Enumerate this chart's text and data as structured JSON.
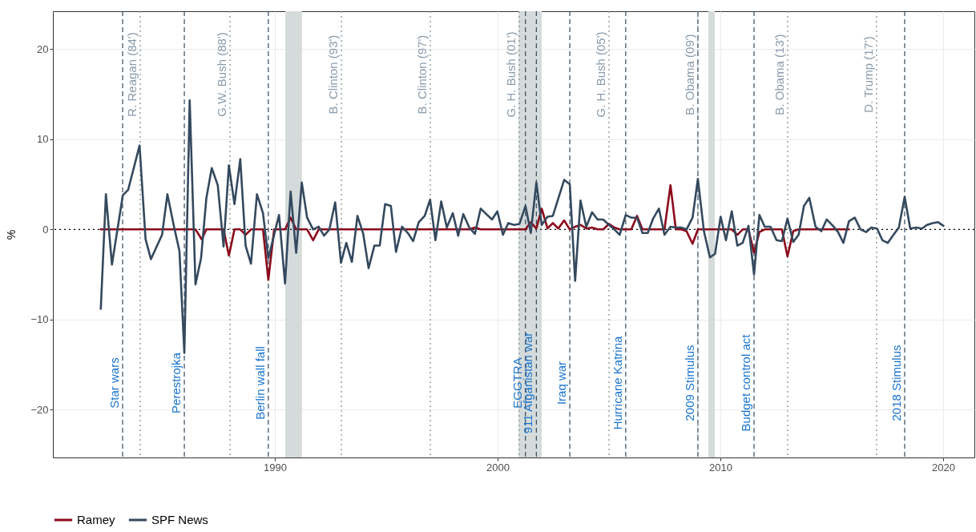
{
  "chart_data": {
    "type": "line",
    "ylabel": "%",
    "xlim": [
      1980.04,
      2021.4
    ],
    "xticks": [
      1990,
      2000,
      2010,
      2020
    ],
    "ylim": [
      -25.3,
      24.2
    ],
    "yticks": [
      -20,
      -10,
      0,
      10,
      20
    ],
    "grid": true,
    "legend": "bottom",
    "line_style": "solid",
    "series": [
      {
        "name": "Ramey",
        "color": "#8b0a1a",
        "x": [
          1982.19,
          1986.44,
          1986.72,
          1986.93,
          1987.7,
          1987.94,
          1988.19,
          1988.45,
          1988.69,
          1988.93,
          1989.47,
          1989.71,
          1989.97,
          1990.46,
          1990.71,
          1990.96,
          1991.45,
          1991.72,
          1991.97,
          1998.73,
          1998.98,
          1999.24,
          2000.98,
          2001.25,
          2001.49,
          2001.74,
          2001.98,
          2002.24,
          2002.48,
          2002.72,
          2002.99,
          2003.24,
          2003.48,
          2003.72,
          2003.98,
          2004.24,
          2004.49,
          2004.74,
          2005.0,
          2005.24,
          2005.48,
          2006.0,
          2006.26,
          2006.5,
          2007.49,
          2007.76,
          2008.0,
          2008.24,
          2008.48,
          2008.75,
          2008.99,
          2010.51,
          2010.76,
          2011.0,
          2011.26,
          2011.51,
          2011.75,
          2011.99,
          2012.76,
          2013.01,
          2013.27,
          2013.51,
          2015.77
        ],
        "values": [
          0,
          0,
          -1.1,
          0,
          0,
          -2.9,
          0,
          0,
          -0.6,
          0,
          0,
          -5.6,
          0,
          0,
          1.3,
          0,
          0,
          -1.2,
          0,
          0,
          0.2,
          0,
          0,
          0,
          0.8,
          0.1,
          2.3,
          0.1,
          0.7,
          0.1,
          1.0,
          0,
          0.3,
          0.5,
          0.1,
          0.2,
          0,
          0,
          0.6,
          0.2,
          0,
          0,
          1.5,
          0,
          0,
          4.9,
          0,
          0,
          -0.2,
          -1.6,
          0,
          0,
          -0.6,
          0,
          0,
          -2.6,
          -0.3,
          0,
          0,
          -3.0,
          -0.2,
          0,
          0
        ]
      },
      {
        "name": "SPF News",
        "color": "#34495e",
        "x": [
          1982.19,
          1982.42,
          1982.69,
          1983.18,
          1983.42,
          1983.93,
          1984.2,
          1984.44,
          1984.94,
          1985.18,
          1985.46,
          1985.72,
          1985.94,
          1986.18,
          1986.44,
          1986.69,
          1986.93,
          1987.17,
          1987.44,
          1987.7,
          1987.94,
          1988.19,
          1988.45,
          1988.69,
          1988.93,
          1989.2,
          1989.47,
          1989.71,
          1990.19,
          1990.46,
          1990.71,
          1990.96,
          1991.21,
          1991.45,
          1991.72,
          1991.97,
          1992.21,
          1992.45,
          1992.71,
          1992.97,
          1993.21,
          1993.46,
          1993.71,
          1993.97,
          1994.21,
          1994.47,
          1994.71,
          1994.95,
          1995.21,
          1995.44,
          1995.71,
          1995.97,
          1996.21,
          1996.46,
          1996.73,
          1996.97,
          1997.21,
          1997.47,
          1997.72,
          1997.99,
          1998.23,
          1998.46,
          1998.73,
          1998.98,
          1999.24,
          1999.49,
          1999.75,
          1999.99,
          2000.24,
          2000.48,
          2000.74,
          2000.98,
          2001.25,
          2001.49,
          2001.74,
          2001.98,
          2002.24,
          2002.48,
          2002.72,
          2002.99,
          2003.24,
          2003.48,
          2003.72,
          2003.98,
          2004.24,
          2004.49,
          2004.74,
          2005.0,
          2005.24,
          2005.48,
          2005.75,
          2006.0,
          2006.26,
          2006.5,
          2006.74,
          2006.98,
          2007.24,
          2007.49,
          2007.76,
          2008.0,
          2008.24,
          2008.48,
          2008.75,
          2008.99,
          2009.26,
          2009.53,
          2009.76,
          2010.01,
          2010.25,
          2010.51,
          2010.76,
          2011.0,
          2011.26,
          2011.51,
          2011.75,
          2011.99,
          2012.25,
          2012.52,
          2012.76,
          2013.01,
          2013.27,
          2013.51,
          2013.75,
          2013.99,
          2014.27,
          2014.53,
          2014.77,
          2015.05,
          2015.28,
          2015.52,
          2015.77,
          2016.03,
          2016.29,
          2016.54,
          2016.77,
          2017.03,
          2017.27,
          2017.51,
          2017.77,
          2018.01,
          2018.27,
          2018.52,
          2018.79,
          2019.05,
          2019.27,
          2019.53,
          2019.77,
          2020.01
        ],
        "values": [
          -8.8,
          3.9,
          -3.9,
          3.8,
          4.4,
          9.3,
          -1.1,
          -3.3,
          -0.6,
          3.9,
          0.5,
          -2.4,
          -13.7,
          14.3,
          -6.1,
          -3.2,
          3.5,
          6.8,
          4.9,
          -1.9,
          7.1,
          2.8,
          7.8,
          -1.8,
          -3.8,
          3.9,
          1.8,
          -3.2,
          1.6,
          -6.0,
          4.2,
          -2.6,
          5.2,
          1.3,
          0.0,
          0.3,
          -0.7,
          0.0,
          3.0,
          -3.7,
          -1.5,
          -3.6,
          1.5,
          -0.5,
          -4.3,
          -1.8,
          -1.8,
          2.8,
          2.6,
          -2.5,
          0.3,
          -0.4,
          -1.3,
          0.8,
          1.5,
          3.3,
          -1.2,
          3.1,
          0.2,
          1.8,
          -0.7,
          1.7,
          0.2,
          -0.5,
          2.3,
          1.7,
          1.1,
          2.0,
          -0.6,
          0.7,
          0.5,
          0.6,
          2.6,
          -0.4,
          5.2,
          0.5,
          1.4,
          1.5,
          3.4,
          5.5,
          5.0,
          -5.7,
          3.2,
          0.3,
          1.9,
          1.1,
          1.1,
          0.5,
          0.0,
          -0.6,
          1.6,
          1.3,
          1.3,
          -0.4,
          -0.4,
          1.2,
          2.3,
          -0.6,
          0.3,
          0.2,
          0.2,
          0.0,
          1.3,
          5.6,
          -0.2,
          -3.1,
          -2.7,
          1.4,
          -1.2,
          2.0,
          -1.8,
          -1.5,
          0.4,
          -5.0,
          1.6,
          0.3,
          0.3,
          -1.2,
          -1.3,
          1.2,
          -1.4,
          -0.6,
          2.6,
          3.5,
          0.3,
          -0.2,
          1.1,
          0.4,
          -0.3,
          -1.5,
          0.9,
          1.3,
          0.0,
          -0.3,
          0.2,
          0.1,
          -1.2,
          -1.5,
          -0.6,
          0.2,
          3.6,
          0.1,
          0.2,
          0.1,
          0.5,
          0.7,
          0.8,
          0.4
        ]
      }
    ],
    "bands": [
      {
        "axis": "x",
        "from": 1990.47,
        "to": 1991.22,
        "color": "#d5dbdb"
      },
      {
        "axis": "x",
        "from": 2000.94,
        "to": 2001.98,
        "color": "#d5dbdb"
      },
      {
        "axis": "x",
        "from": 2009.46,
        "to": 2009.75,
        "color": "#d5dbdb"
      }
    ],
    "ref_lines": [
      {
        "axis": "y",
        "value": 0,
        "color": "#000000",
        "line_style": "dotted"
      },
      {
        "axis": "x",
        "value": 1983.17,
        "label": "Star wars",
        "color": "#34495e",
        "line_style": "dashed"
      },
      {
        "axis": "x",
        "value": 1985.94,
        "label": "Perestrojka",
        "color": "#34495e",
        "line_style": "dashed"
      },
      {
        "axis": "x",
        "value": 1989.71,
        "label": "Berlin wall fall",
        "color": "#34495e",
        "line_style": "dashed"
      },
      {
        "axis": "x",
        "value": 2001.25,
        "label": "EGGTRA",
        "color": "#34495e",
        "line_style": "dashed"
      },
      {
        "axis": "x",
        "value": 2001.74,
        "label": "911 Afganistan war",
        "color": "#34495e",
        "line_style": "dashed"
      },
      {
        "axis": "x",
        "value": 2003.24,
        "label": "Iraq war",
        "color": "#34495e",
        "line_style": "dashed"
      },
      {
        "axis": "x",
        "value": 2005.75,
        "label": "Hurricane Katrina",
        "color": "#34495e",
        "line_style": "dashed"
      },
      {
        "axis": "x",
        "value": 2008.99,
        "label": "2009 Stimulus",
        "color": "#34495e",
        "line_style": "dashed"
      },
      {
        "axis": "x",
        "value": 2011.51,
        "label": "Budget control act",
        "color": "#34495e",
        "line_style": "dashed"
      },
      {
        "axis": "x",
        "value": 2018.27,
        "label": "2018 Stimulus",
        "color": "#34495e",
        "line_style": "dashed"
      },
      {
        "axis": "x",
        "value": 1983.96,
        "label": "R. Reagan (84')",
        "color": "#7f8c8d",
        "line_style": "dotted"
      },
      {
        "axis": "x",
        "value": 1987.99,
        "label": "G.W. Bush (88')",
        "color": "#7f8c8d",
        "line_style": "dotted"
      },
      {
        "axis": "x",
        "value": 1992.99,
        "label": "B. Clinton (93')",
        "color": "#7f8c8d",
        "line_style": "dotted"
      },
      {
        "axis": "x",
        "value": 1996.98,
        "label": "B. Clinton (97')",
        "color": "#7f8c8d",
        "line_style": "dotted"
      },
      {
        "axis": "x",
        "value": 2000.97,
        "label": "G. H. Bush (01')",
        "color": "#7f8c8d",
        "line_style": "dotted"
      },
      {
        "axis": "x",
        "value": 2005.0,
        "label": "G. H. Bush (05')",
        "color": "#7f8c8d",
        "line_style": "dotted"
      },
      {
        "axis": "x",
        "value": 2008.99,
        "label": "B. Obama (09')",
        "color": "#7f8c8d",
        "line_style": "dotted"
      },
      {
        "axis": "x",
        "value": 2013.02,
        "label": "B. Obama (13')",
        "color": "#7f8c8d",
        "line_style": "dotted"
      },
      {
        "axis": "x",
        "value": 2017.01,
        "label": "D. Trump (17')",
        "color": "#7f8c8d",
        "line_style": "dotted"
      }
    ]
  }
}
